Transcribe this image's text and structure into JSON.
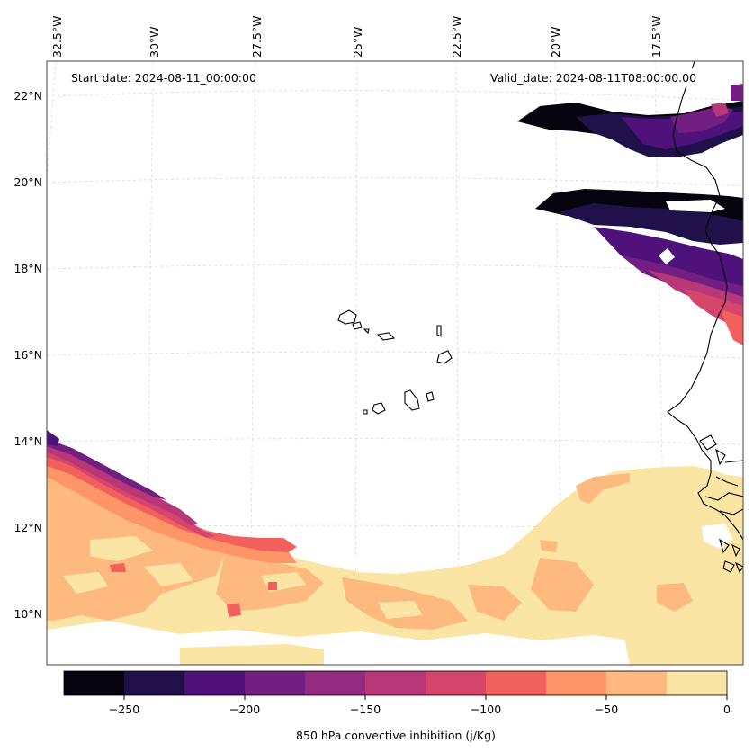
{
  "header": {
    "start_date": "Start date: 2024-08-11_00:00:00",
    "valid_date": "Valid_date: 2024-08-11T08:00:00.00"
  },
  "longitude_labels": [
    "32.5°W",
    "30°W",
    "27.5°W",
    "25°W",
    "22.5°W",
    "20°W",
    "17.5°W"
  ],
  "latitude_labels": [
    "22°N",
    "20°N",
    "18°N",
    "16°N",
    "14°N",
    "12°N",
    "10°N"
  ],
  "colorbar": {
    "label": "850 hPa convective inhibition (j/Kg)",
    "tick_labels": [
      "−250",
      "−200",
      "−150",
      "−100",
      "−50",
      "0"
    ],
    "levels": [
      -275,
      -250,
      -225,
      -200,
      -175,
      -150,
      -125,
      -100,
      -75,
      -50,
      -25,
      0
    ],
    "colors": [
      "#05040f",
      "#20114b",
      "#4f127b",
      "#721f81",
      "#932b80",
      "#b73779",
      "#d6456c",
      "#f1605d",
      "#fd9567",
      "#feb97f",
      "#fbe5a5"
    ]
  },
  "chart_data": {
    "type": "filled-contour-map",
    "variable": "850 hPa convective inhibition",
    "units": "j/Kg",
    "lon_range": [
      -33,
      -15
    ],
    "lat_range": [
      8.8,
      22.8
    ],
    "features": [
      "Cape Verde islands",
      "West African coastline"
    ]
  }
}
